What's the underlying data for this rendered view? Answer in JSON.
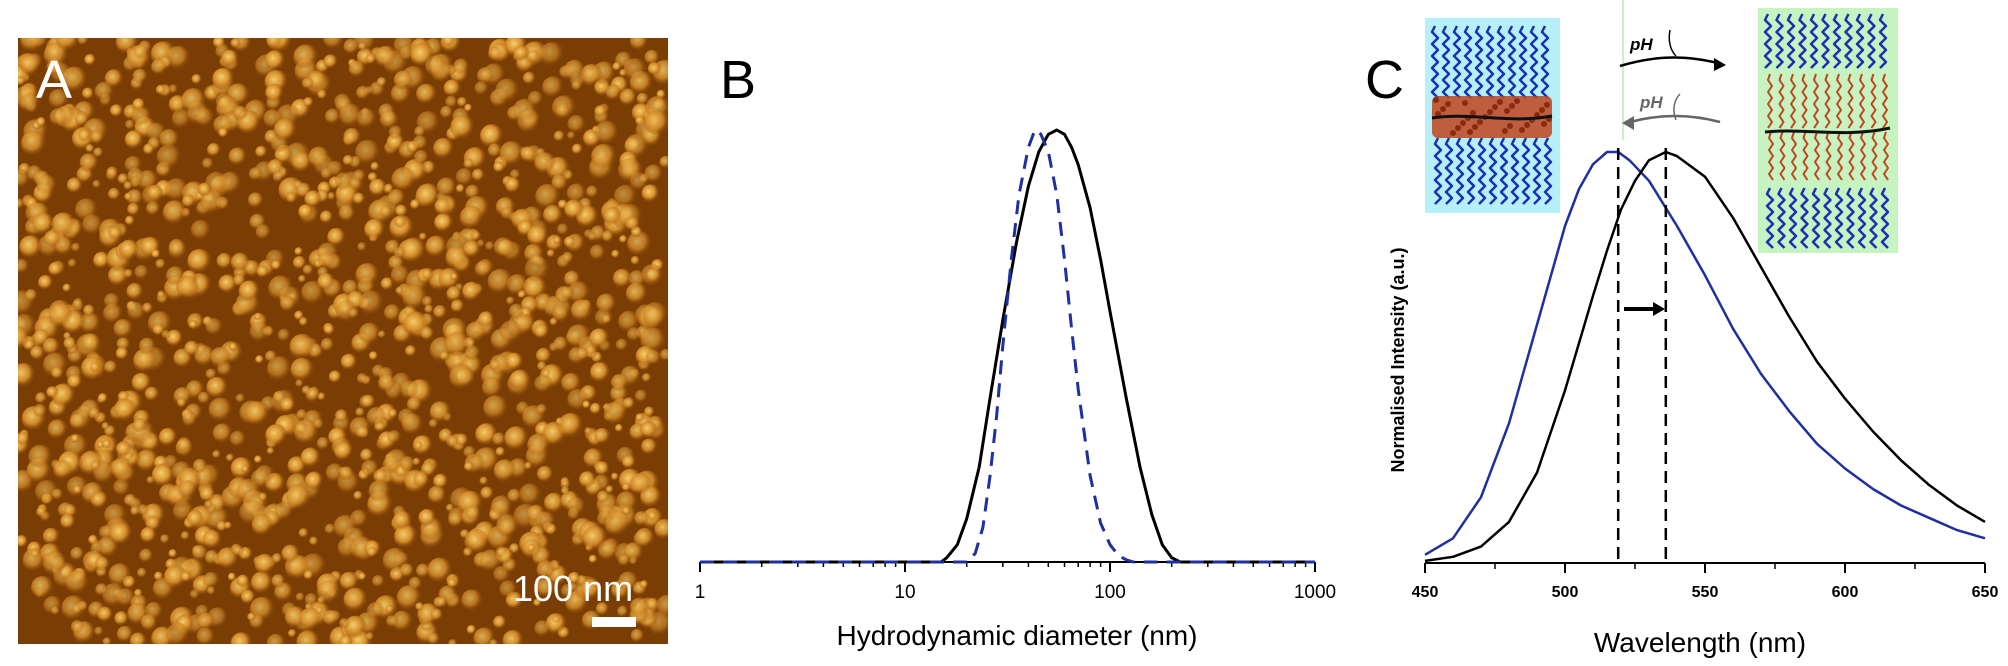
{
  "panel_a": {
    "label": "A",
    "scale_bar": "100 nm",
    "colors": {
      "background": "#7a3e05",
      "grain_light": "#e8ad45",
      "grain_mid": "#b5680f"
    }
  },
  "chart_data": [
    {
      "panel": "B",
      "type": "line",
      "xlabel": "Hydrodynamic diameter (nm)",
      "ylabel": "",
      "xscale": "log",
      "xlim": [
        1,
        1000
      ],
      "xticks": [
        "1",
        "10",
        "100",
        "1000"
      ],
      "grid": false,
      "series": [
        {
          "style": "solid",
          "color": "#000000",
          "x": [
            1,
            15,
            16,
            18,
            20,
            23,
            26,
            30,
            35,
            40,
            45,
            50,
            55,
            60,
            65,
            70,
            80,
            90,
            100,
            120,
            140,
            160,
            180,
            200,
            220,
            1000
          ],
          "y": [
            0,
            0,
            0.01,
            0.04,
            0.1,
            0.22,
            0.38,
            0.56,
            0.74,
            0.87,
            0.95,
            0.99,
            1.0,
            0.99,
            0.96,
            0.92,
            0.82,
            0.7,
            0.58,
            0.38,
            0.22,
            0.11,
            0.04,
            0.01,
            0,
            0
          ]
        },
        {
          "style": "dashed",
          "color": "#1f2fa0",
          "x": [
            1,
            20,
            22,
            24,
            26,
            28,
            30,
            33,
            36,
            40,
            43,
            46,
            50,
            55,
            60,
            65,
            70,
            80,
            90,
            100,
            110,
            120,
            130,
            1000
          ],
          "y": [
            0,
            0,
            0.02,
            0.08,
            0.2,
            0.34,
            0.5,
            0.7,
            0.85,
            0.96,
            1.0,
            0.99,
            0.95,
            0.85,
            0.7,
            0.54,
            0.4,
            0.2,
            0.09,
            0.04,
            0.015,
            0.005,
            0,
            0
          ]
        }
      ]
    },
    {
      "panel": "C",
      "type": "line",
      "xlabel": "Wavelength (nm)",
      "ylabel": "Normalised Intensity (a.u.)",
      "xlim": [
        450,
        650
      ],
      "xticks": [
        "450",
        "500",
        "550",
        "600",
        "650"
      ],
      "grid": false,
      "peaks_marked": [
        519,
        536
      ],
      "series": [
        {
          "color": "#1f2fa0",
          "x": [
            450,
            460,
            470,
            480,
            490,
            500,
            505,
            510,
            515,
            519,
            523,
            530,
            540,
            550,
            560,
            570,
            580,
            590,
            600,
            610,
            620,
            630,
            640,
            650
          ],
          "y": [
            0.02,
            0.06,
            0.16,
            0.34,
            0.58,
            0.82,
            0.91,
            0.97,
            1.0,
            1.0,
            0.98,
            0.93,
            0.82,
            0.7,
            0.57,
            0.46,
            0.37,
            0.29,
            0.23,
            0.18,
            0.14,
            0.11,
            0.08,
            0.06
          ]
        },
        {
          "color": "#000000",
          "x": [
            450,
            460,
            470,
            480,
            490,
            500,
            510,
            515,
            520,
            525,
            530,
            536,
            540,
            550,
            560,
            570,
            580,
            590,
            600,
            610,
            620,
            630,
            640,
            650
          ],
          "y": [
            0.005,
            0.015,
            0.04,
            0.1,
            0.22,
            0.42,
            0.65,
            0.76,
            0.86,
            0.93,
            0.98,
            1.0,
            0.99,
            0.94,
            0.84,
            0.72,
            0.6,
            0.49,
            0.4,
            0.32,
            0.25,
            0.19,
            0.14,
            0.1
          ]
        }
      ]
    }
  ],
  "panel_c": {
    "label": "C",
    "inset_left_bg": "#b5f0f8",
    "inset_right_bg": "#c6f3c0",
    "arrow_top_label": "pH",
    "arrow_bottom_label": "pH"
  },
  "panel_b": {
    "label": "B"
  }
}
